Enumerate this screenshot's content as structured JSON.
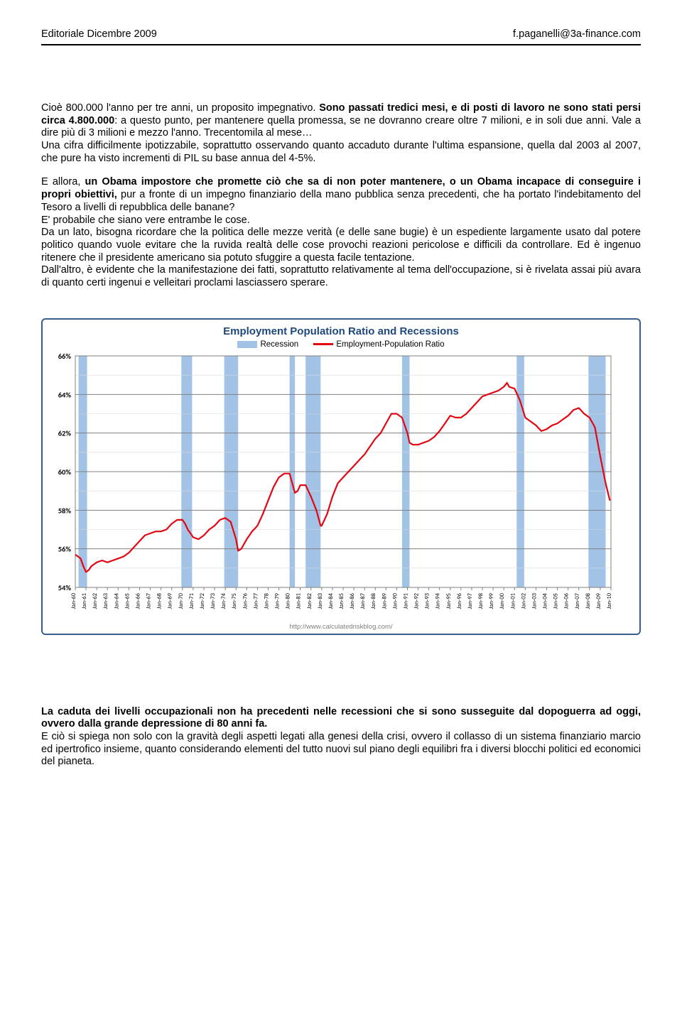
{
  "header": {
    "left": "Editoriale Dicembre 2009",
    "right": "f.paganelli@3a-finance.com"
  },
  "paragraphs": {
    "p1_a": "Cioè 800.000 l'anno per tre anni, un proposito impegnativo. ",
    "p1_b": "Sono passati tredici mesi, e di posti di lavoro ne sono stati persi circa 4.800.000",
    "p1_c": ": a questo punto, per mantenere quella promessa, se ne dovranno creare oltre 7 milioni, e in soli due anni. Vale a dire più di 3 milioni e mezzo l'anno. Trecentomila al mese…",
    "p1_d": "Una cifra difficilmente ipotizzabile, soprattutto osservando quanto accaduto durante l'ultima espansione, quella dal 2003 al 2007, che pure ha visto incrementi di PIL su base annua del 4-5%.",
    "p2_a": "E allora, ",
    "p2_b": "un Obama impostore che promette ciò che sa di non poter mantenere, o un Obama incapace di conseguire i propri obiettivi,",
    "p2_c": " pur a fronte di un impegno finanziario della mano pubblica senza precedenti, che ha portato l'indebitamento del Tesoro a livelli di repubblica delle banane?",
    "p2_d": "E' probabile che siano vere entrambe le cose.",
    "p2_e": "Da un lato, bisogna ricordare che la politica delle mezze verità (e delle sane bugie) è un espediente largamente usato dal potere politico quando vuole evitare che la ruvida realtà delle cose provochi reazioni pericolose e difficili da controllare. Ed è ingenuo ritenere che il presidente americano sia potuto sfuggire a questa facile tentazione.",
    "p2_f": "Dall'altro, è evidente che la manifestazione dei fatti, soprattutto relativamente al tema dell'occupazione, si è rivelata assai più avara di quanto certi ingenui e velleitari proclami lasciassero sperare.",
    "p3_a": "La caduta dei livelli occupazionali non ha precedenti nelle recessioni che si sono susseguite dal dopoguerra ad oggi, ovvero dalla grande depressione di 80 anni fa.",
    "p3_b": "E ciò si spiega non solo con la gravità degli aspetti legati alla genesi della crisi, ovvero il collasso di un sistema finanziario marcio ed ipertrofico insieme, quanto considerando elementi del tutto nuovi sul piano degli equilibri fra i diversi blocchi politici ed economici del pianeta."
  },
  "chart": {
    "title": "Employment Population Ratio and Recessions",
    "legend_recession": "Recession",
    "legend_line": "Employment-Population Ratio",
    "footer": "http://www.calculatedriskblog.com/",
    "ylim": [
      54,
      66
    ],
    "ytick_step": 2,
    "y_ticks": [
      54,
      56,
      58,
      60,
      62,
      64,
      66
    ],
    "y_minor_ticks": [
      55,
      57,
      59,
      61,
      63,
      65
    ],
    "x_start_year": 1960,
    "x_end_year": 2010,
    "x_ticks": [
      "Jan-60",
      "Jan-61",
      "Jan-62",
      "Jan-63",
      "Jan-64",
      "Jan-65",
      "Jan-66",
      "Jan-67",
      "Jan-68",
      "Jan-69",
      "Jan-70",
      "Jan-71",
      "Jan-72",
      "Jan-73",
      "Jan-74",
      "Jan-75",
      "Jan-76",
      "Jan-77",
      "Jan-78",
      "Jan-79",
      "Jan-80",
      "Jan-81",
      "Jan-82",
      "Jan-83",
      "Jan-84",
      "Jan-85",
      "Jan-86",
      "Jan-87",
      "Jan-88",
      "Jan-89",
      "Jan-90",
      "Jan-91",
      "Jan-92",
      "Jan-93",
      "Jan-94",
      "Jan-95",
      "Jan-96",
      "Jan-97",
      "Jan-98",
      "Jan-99",
      "Jan-00",
      "Jan-01",
      "Jan-02",
      "Jan-03",
      "Jan-04",
      "Jan-05",
      "Jan-06",
      "Jan-07",
      "Jan-08",
      "Jan-09",
      "Jan-10"
    ],
    "recessions": [
      [
        1960.3,
        1961.1
      ],
      [
        1969.9,
        1970.9
      ],
      [
        1973.9,
        1975.2
      ],
      [
        1980.0,
        1980.5
      ],
      [
        1981.5,
        1982.9
      ],
      [
        1990.5,
        1991.2
      ],
      [
        2001.2,
        2001.9
      ],
      [
        2007.9,
        2009.5
      ]
    ],
    "line_color": "#e30613",
    "recession_color": "#a3c3e6",
    "grid_major_color": "#808080",
    "grid_minor_color": "#d9d9d9",
    "background_color": "#ffffff",
    "data": [
      [
        1960.0,
        55.7
      ],
      [
        1960.25,
        55.6
      ],
      [
        1960.5,
        55.5
      ],
      [
        1960.75,
        55.1
      ],
      [
        1961.0,
        54.8
      ],
      [
        1961.25,
        54.9
      ],
      [
        1961.5,
        55.1
      ],
      [
        1961.75,
        55.2
      ],
      [
        1962.0,
        55.3
      ],
      [
        1962.5,
        55.4
      ],
      [
        1963.0,
        55.3
      ],
      [
        1963.5,
        55.4
      ],
      [
        1964.0,
        55.5
      ],
      [
        1964.5,
        55.6
      ],
      [
        1965.0,
        55.8
      ],
      [
        1965.5,
        56.1
      ],
      [
        1966.0,
        56.4
      ],
      [
        1966.5,
        56.7
      ],
      [
        1967.0,
        56.8
      ],
      [
        1967.5,
        56.9
      ],
      [
        1968.0,
        56.9
      ],
      [
        1968.5,
        57.0
      ],
      [
        1969.0,
        57.3
      ],
      [
        1969.5,
        57.5
      ],
      [
        1970.0,
        57.5
      ],
      [
        1970.25,
        57.3
      ],
      [
        1970.5,
        57.0
      ],
      [
        1970.75,
        56.8
      ],
      [
        1971.0,
        56.6
      ],
      [
        1971.5,
        56.5
      ],
      [
        1972.0,
        56.7
      ],
      [
        1972.5,
        57.0
      ],
      [
        1973.0,
        57.2
      ],
      [
        1973.5,
        57.5
      ],
      [
        1974.0,
        57.6
      ],
      [
        1974.5,
        57.4
      ],
      [
        1975.0,
        56.5
      ],
      [
        1975.2,
        55.9
      ],
      [
        1975.5,
        56.0
      ],
      [
        1976.0,
        56.5
      ],
      [
        1976.5,
        56.9
      ],
      [
        1977.0,
        57.2
      ],
      [
        1977.5,
        57.8
      ],
      [
        1978.0,
        58.5
      ],
      [
        1978.5,
        59.2
      ],
      [
        1979.0,
        59.7
      ],
      [
        1979.5,
        59.9
      ],
      [
        1980.0,
        59.9
      ],
      [
        1980.3,
        59.3
      ],
      [
        1980.5,
        58.9
      ],
      [
        1980.75,
        59.0
      ],
      [
        1981.0,
        59.3
      ],
      [
        1981.5,
        59.3
      ],
      [
        1982.0,
        58.7
      ],
      [
        1982.5,
        58.0
      ],
      [
        1982.9,
        57.2
      ],
      [
        1983.0,
        57.2
      ],
      [
        1983.5,
        57.8
      ],
      [
        1984.0,
        58.7
      ],
      [
        1984.5,
        59.4
      ],
      [
        1985.0,
        59.7
      ],
      [
        1985.5,
        60.0
      ],
      [
        1986.0,
        60.3
      ],
      [
        1986.5,
        60.6
      ],
      [
        1987.0,
        60.9
      ],
      [
        1987.5,
        61.3
      ],
      [
        1988.0,
        61.7
      ],
      [
        1988.5,
        62.0
      ],
      [
        1989.0,
        62.5
      ],
      [
        1989.5,
        63.0
      ],
      [
        1990.0,
        63.0
      ],
      [
        1990.5,
        62.8
      ],
      [
        1991.0,
        62.0
      ],
      [
        1991.2,
        61.5
      ],
      [
        1991.5,
        61.4
      ],
      [
        1992.0,
        61.4
      ],
      [
        1992.5,
        61.5
      ],
      [
        1993.0,
        61.6
      ],
      [
        1993.5,
        61.8
      ],
      [
        1994.0,
        62.1
      ],
      [
        1994.5,
        62.5
      ],
      [
        1995.0,
        62.9
      ],
      [
        1995.5,
        62.8
      ],
      [
        1996.0,
        62.8
      ],
      [
        1996.5,
        63.0
      ],
      [
        1997.0,
        63.3
      ],
      [
        1997.5,
        63.6
      ],
      [
        1998.0,
        63.9
      ],
      [
        1998.5,
        64.0
      ],
      [
        1999.0,
        64.1
      ],
      [
        1999.5,
        64.2
      ],
      [
        2000.0,
        64.4
      ],
      [
        2000.3,
        64.6
      ],
      [
        2000.5,
        64.4
      ],
      [
        2001.0,
        64.3
      ],
      [
        2001.5,
        63.7
      ],
      [
        2002.0,
        62.8
      ],
      [
        2002.5,
        62.6
      ],
      [
        2003.0,
        62.4
      ],
      [
        2003.5,
        62.1
      ],
      [
        2004.0,
        62.2
      ],
      [
        2004.5,
        62.4
      ],
      [
        2005.0,
        62.5
      ],
      [
        2005.5,
        62.7
      ],
      [
        2006.0,
        62.9
      ],
      [
        2006.5,
        63.2
      ],
      [
        2007.0,
        63.3
      ],
      [
        2007.5,
        63.0
      ],
      [
        2008.0,
        62.8
      ],
      [
        2008.5,
        62.3
      ],
      [
        2009.0,
        60.8
      ],
      [
        2009.5,
        59.4
      ],
      [
        2009.9,
        58.5
      ]
    ]
  }
}
